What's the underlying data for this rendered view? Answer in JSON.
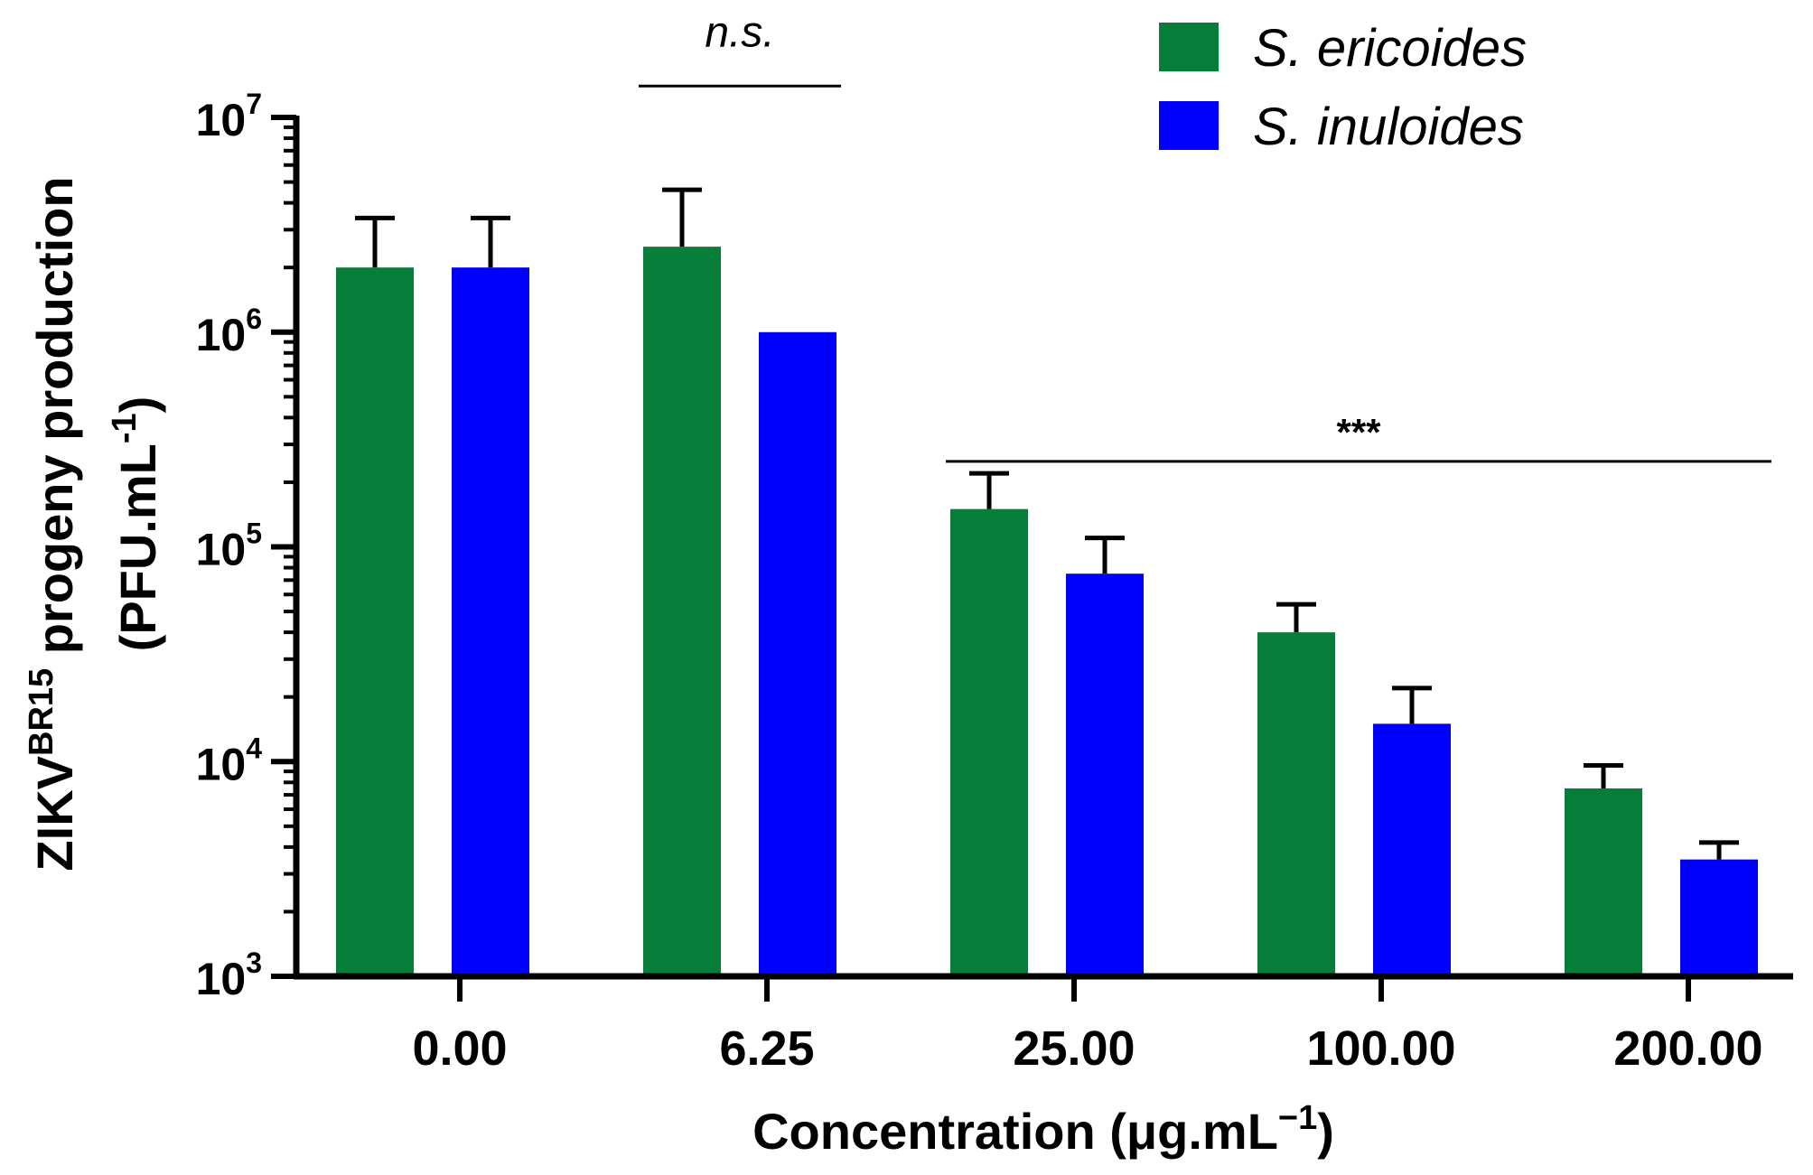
{
  "chart_data": {
    "type": "bar",
    "title": "",
    "xlabel": "Concentration (μg.mL",
    "xlabel_sup": "−1",
    "xlabel_close": ")",
    "ylabel_line1_main": "ZIKV",
    "ylabel_line1_sup": "BR15",
    "ylabel_line1_rest": " progeny production",
    "ylabel_line2_main": "(PFU.mL",
    "ylabel_line2_sup": "-1",
    "ylabel_line2_close": ")",
    "yscale": "log",
    "ylim": [
      1000,
      10000000
    ],
    "yticks": [
      {
        "base": "10",
        "exp": "3",
        "value": 1000
      },
      {
        "base": "10",
        "exp": "4",
        "value": 10000
      },
      {
        "base": "10",
        "exp": "5",
        "value": 100000
      },
      {
        "base": "10",
        "exp": "6",
        "value": 1000000
      },
      {
        "base": "10",
        "exp": "7",
        "value": 10000000
      }
    ],
    "categories": [
      "0.00",
      "6.25",
      "25.00",
      "100.00",
      "200.00"
    ],
    "series": [
      {
        "name": "S. ericoides",
        "color": "#077d3a",
        "values": [
          2000000,
          2500000,
          150000,
          40000,
          7500
        ],
        "error_upper": [
          3400000,
          4600000,
          220000,
          54000,
          9600
        ]
      },
      {
        "name": "S. inuloides",
        "color": "#0000ff",
        "values": [
          2000000,
          1000000,
          75000,
          15000,
          3500
        ],
        "error_upper": [
          3400000,
          null,
          110000,
          22000,
          4200
        ]
      }
    ],
    "annotations": [
      {
        "text": "n.s.",
        "style": "italic",
        "categories": [
          "6.25"
        ],
        "value": 14000000
      },
      {
        "text": "***",
        "style": "bold",
        "categories": [
          "25.00",
          "200.00"
        ],
        "value": 250000
      }
    ],
    "legend_position": "top-right"
  }
}
